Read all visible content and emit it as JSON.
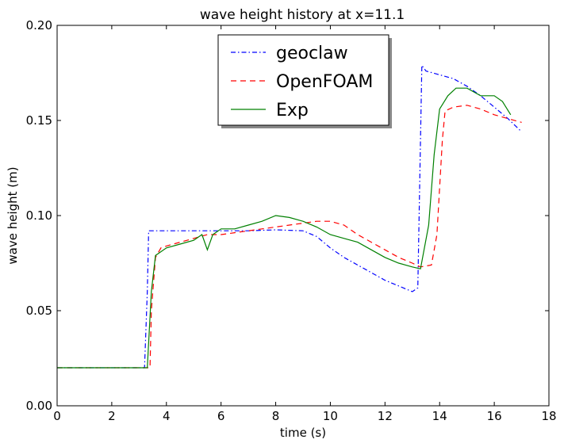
{
  "chart_data": {
    "type": "line",
    "title": "wave height history at x=11.1",
    "xlabel": "time (s)",
    "ylabel": "wave height (m)",
    "xlim": [
      0,
      18
    ],
    "ylim": [
      0.0,
      0.2
    ],
    "xticks": [
      0,
      2,
      4,
      6,
      8,
      10,
      12,
      14,
      16,
      18
    ],
    "xtick_labels": [
      "0",
      "2",
      "4",
      "6",
      "8",
      "10",
      "12",
      "14",
      "16",
      "18"
    ],
    "yticks": [
      0.0,
      0.05,
      0.1,
      0.15,
      0.2
    ],
    "ytick_labels": [
      "0.00",
      "0.05",
      "0.10",
      "0.15",
      "0.20"
    ],
    "grid": false,
    "legend_position": "top-center",
    "series": [
      {
        "name": "geoclaw",
        "color": "#0000ff",
        "dash": "dashdot",
        "x": [
          0,
          3.2,
          3.3,
          3.35,
          4.0,
          5.0,
          5.3,
          6.0,
          7.0,
          8.0,
          9.0,
          9.5,
          10.0,
          10.5,
          11.0,
          11.5,
          12.0,
          12.5,
          13.0,
          13.2,
          13.35,
          13.5,
          14.0,
          14.5,
          15.0,
          15.5,
          16.0,
          16.5,
          17.0
        ],
        "y": [
          0.02,
          0.02,
          0.06,
          0.092,
          0.092,
          0.092,
          0.092,
          0.092,
          0.092,
          0.0925,
          0.092,
          0.089,
          0.083,
          0.078,
          0.074,
          0.07,
          0.066,
          0.063,
          0.06,
          0.062,
          0.179,
          0.176,
          0.174,
          0.172,
          0.168,
          0.163,
          0.157,
          0.151,
          0.144
        ]
      },
      {
        "name": "OpenFOAM",
        "color": "#ff0000",
        "dash": "dashed",
        "x": [
          0,
          3.4,
          3.45,
          3.6,
          3.8,
          4.0,
          4.5,
          5.0,
          5.5,
          6.0,
          6.5,
          7.0,
          7.5,
          8.0,
          8.5,
          9.0,
          9.5,
          10.0,
          10.5,
          11.0,
          11.5,
          12.0,
          12.5,
          13.0,
          13.3,
          13.7,
          13.9,
          14.1,
          14.2,
          14.5,
          15.0,
          15.5,
          16.0,
          16.5,
          17.0
        ],
        "y": [
          0.02,
          0.02,
          0.05,
          0.078,
          0.083,
          0.084,
          0.086,
          0.088,
          0.09,
          0.09,
          0.091,
          0.092,
          0.093,
          0.094,
          0.095,
          0.096,
          0.097,
          0.097,
          0.095,
          0.09,
          0.086,
          0.082,
          0.078,
          0.075,
          0.073,
          0.074,
          0.09,
          0.14,
          0.155,
          0.157,
          0.158,
          0.156,
          0.153,
          0.151,
          0.149
        ]
      },
      {
        "name": "Exp",
        "color": "#008000",
        "dash": "solid",
        "x": [
          0,
          3.3,
          3.45,
          3.6,
          4.0,
          4.5,
          5.0,
          5.3,
          5.5,
          5.7,
          6.0,
          6.5,
          7.0,
          7.5,
          8.0,
          8.5,
          9.0,
          9.5,
          10.0,
          10.5,
          11.0,
          11.5,
          12.0,
          12.5,
          13.0,
          13.3,
          13.6,
          13.8,
          14.0,
          14.3,
          14.6,
          15.0,
          15.5,
          16.0,
          16.3,
          16.6
        ],
        "y": [
          0.02,
          0.02,
          0.06,
          0.079,
          0.083,
          0.085,
          0.087,
          0.09,
          0.082,
          0.09,
          0.093,
          0.093,
          0.095,
          0.097,
          0.1,
          0.099,
          0.097,
          0.094,
          0.09,
          0.088,
          0.086,
          0.082,
          0.078,
          0.075,
          0.073,
          0.072,
          0.095,
          0.132,
          0.156,
          0.163,
          0.167,
          0.167,
          0.163,
          0.163,
          0.16,
          0.153
        ]
      }
    ]
  }
}
